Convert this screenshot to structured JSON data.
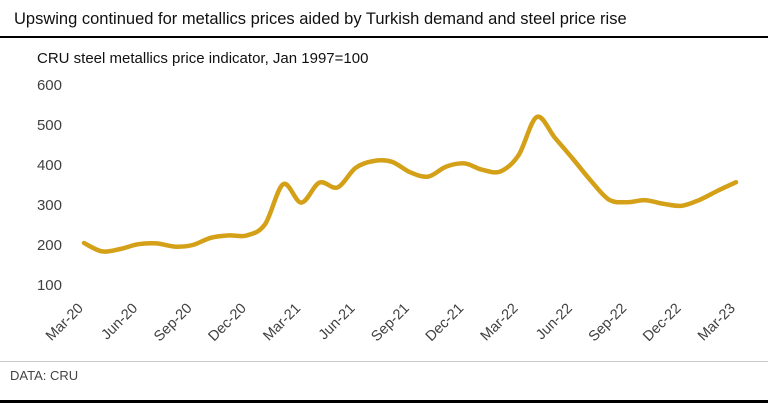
{
  "header": {
    "title": "Upswing continued for metallics prices aided by Turkish demand and steel price rise"
  },
  "chart_data": {
    "type": "line",
    "title": "CRU steel metallics price indicator, Jan 1997=100",
    "x": [
      "Mar-20",
      "Apr-20",
      "May-20",
      "Jun-20",
      "Jul-20",
      "Aug-20",
      "Sep-20",
      "Oct-20",
      "Nov-20",
      "Dec-20",
      "Jan-21",
      "Feb-21",
      "Mar-21",
      "Apr-21",
      "May-21",
      "Jun-21",
      "Jul-21",
      "Aug-21",
      "Sep-21",
      "Oct-21",
      "Nov-21",
      "Dec-21",
      "Jan-22",
      "Feb-22",
      "Mar-22",
      "Apr-22",
      "May-22",
      "Jun-22",
      "Jul-22",
      "Aug-22",
      "Sep-22",
      "Oct-22",
      "Nov-22",
      "Dec-22",
      "Jan-23",
      "Feb-23",
      "Mar-23"
    ],
    "tick_every": 3,
    "series": [
      {
        "name": "CRU steel metallics price indicator",
        "values": [
          205,
          184,
          190,
          202,
          204,
          196,
          200,
          218,
          224,
          224,
          252,
          352,
          306,
          356,
          344,
          393,
          410,
          408,
          382,
          371,
          396,
          404,
          388,
          384,
          425,
          520,
          468,
          415,
          360,
          313,
          307,
          312,
          303,
          298,
          313,
          336,
          357
        ]
      }
    ],
    "ylim": [
      100,
      600
    ],
    "yticks": [
      100,
      200,
      300,
      400,
      500,
      600
    ],
    "grid": false,
    "legend": "none",
    "line_color": "#D4A017",
    "tick_label_color": "#404040"
  },
  "footer": {
    "source": "DATA: CRU"
  }
}
